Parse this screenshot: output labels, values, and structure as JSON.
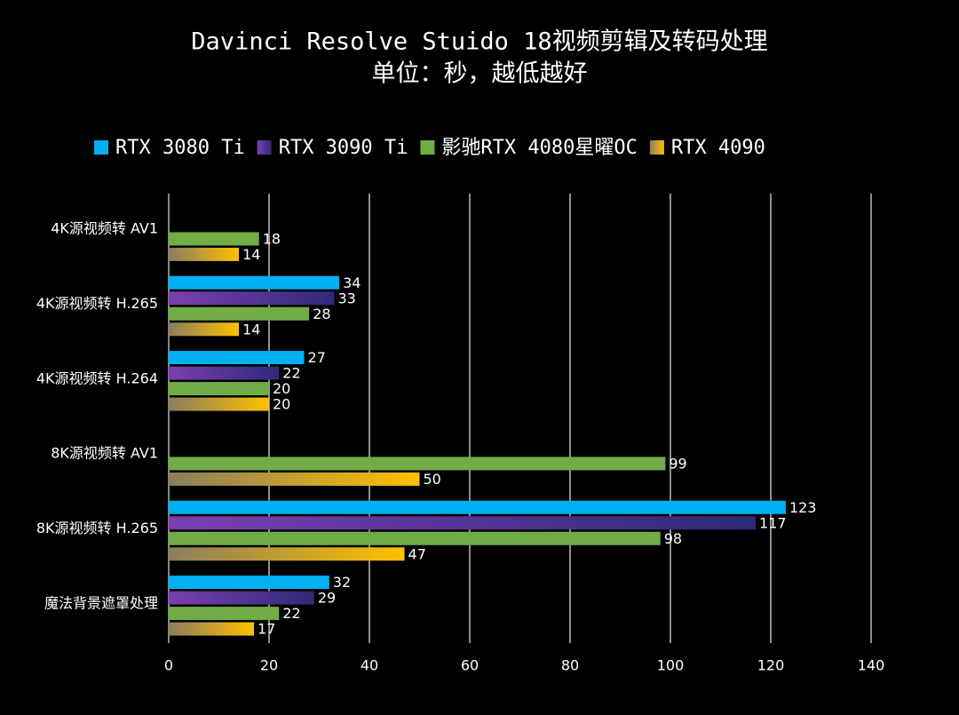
{
  "chart_data": {
    "type": "hbar",
    "title": "Davinci Resolve Stuido 18视频剪辑及转码处理",
    "subtitle": "单位：秒，越低越好",
    "categories": [
      "4K源视频转 AV1",
      "4K源视频转 H.265",
      "4K源视频转 H.264",
      "8K源视频转 AV1",
      "8K源视频转 H.265",
      "魔法背景遮罩处理"
    ],
    "series": [
      {
        "name": "RTX 3080 Ti",
        "color": "#00b0f0",
        "values": [
          null,
          34,
          27,
          null,
          123,
          32
        ]
      },
      {
        "name": "RTX 3090 Ti",
        "color": "#7030a0",
        "values": [
          null,
          33,
          22,
          null,
          117,
          29
        ]
      },
      {
        "name": "影驰RTX 4080星曜OC",
        "color": "#70ad47",
        "values": [
          18,
          28,
          20,
          99,
          98,
          22
        ]
      },
      {
        "name": "RTX 4090",
        "color": "#ffc000",
        "values": [
          14,
          14,
          20,
          50,
          47,
          17
        ]
      }
    ],
    "xlim": [
      0,
      140
    ],
    "xticks": [
      0,
      20,
      40,
      60,
      80,
      100,
      120,
      140
    ],
    "grid": true,
    "legend": "top"
  }
}
